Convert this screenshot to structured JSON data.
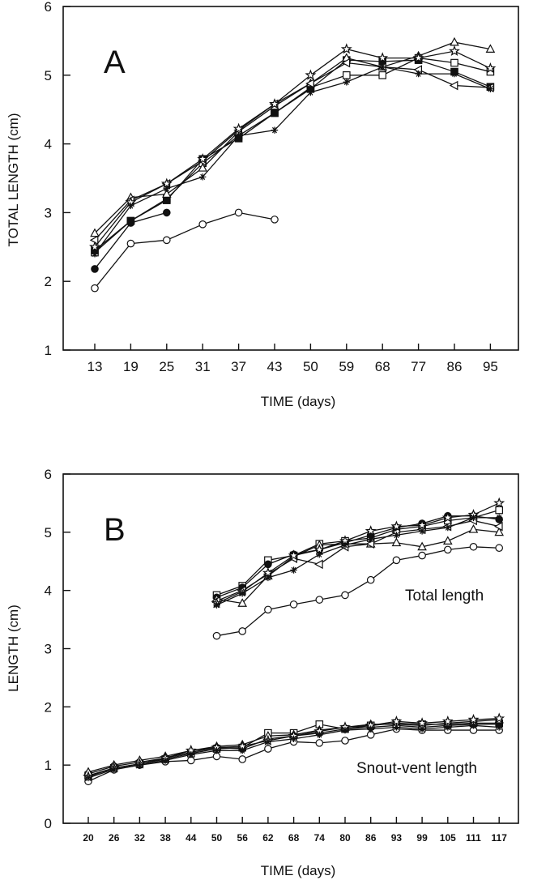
{
  "chart_data": [
    {
      "type": "line",
      "panel_label": "A",
      "xlabel": "TIME (days)",
      "ylabel": "TOTAL LENGTH (cm)",
      "ylim": [
        1,
        6
      ],
      "yticks": [
        "1",
        "2",
        "3",
        "4",
        "5",
        "6"
      ],
      "categories": [
        "13",
        "19",
        "25",
        "31",
        "37",
        "43",
        "50",
        "59",
        "68",
        "77",
        "86",
        "95"
      ],
      "series": [
        {
          "marker": "open-circle",
          "values": [
            1.9,
            2.55,
            2.6,
            2.83,
            3.0,
            2.9,
            null,
            null,
            null,
            null,
            null,
            null
          ]
        },
        {
          "marker": "filled-circle",
          "values": [
            2.18,
            2.85,
            3.0,
            null,
            null,
            null,
            null,
            null,
            null,
            null,
            null,
            null
          ]
        },
        {
          "marker": "open-square",
          "values": [
            2.42,
            2.88,
            3.2,
            3.72,
            4.12,
            4.45,
            4.82,
            5.0,
            5.0,
            5.25,
            5.18,
            5.05
          ]
        },
        {
          "marker": "filled-square",
          "values": [
            2.45,
            2.88,
            3.18,
            3.78,
            4.08,
            4.45,
            4.8,
            5.22,
            5.2,
            5.22,
            5.05,
            4.83
          ]
        },
        {
          "marker": "open-triangle",
          "values": [
            2.7,
            3.22,
            3.27,
            3.65,
            4.18,
            4.55,
            4.88,
            5.25,
            5.12,
            5.28,
            5.48,
            5.38
          ]
        },
        {
          "marker": "left-triangle",
          "values": [
            2.6,
            3.18,
            3.42,
            3.75,
            4.2,
            4.58,
            4.88,
            5.18,
            5.12,
            5.08,
            4.85,
            4.82
          ]
        },
        {
          "marker": "star",
          "values": [
            2.5,
            3.15,
            3.42,
            3.78,
            4.22,
            4.58,
            5.0,
            5.38,
            5.25,
            5.25,
            5.35,
            5.1
          ]
        },
        {
          "marker": "asterisk",
          "values": [
            2.4,
            3.1,
            3.35,
            3.52,
            4.12,
            4.2,
            4.75,
            4.9,
            5.12,
            5.02,
            5.02,
            4.8
          ]
        }
      ]
    },
    {
      "type": "line",
      "panel_label": "B",
      "xlabel": "TIME (days)",
      "ylabel": "LENGTH (cm)",
      "ylim": [
        0,
        6
      ],
      "yticks": [
        "0",
        "1",
        "2",
        "3",
        "4",
        "5",
        "6"
      ],
      "categories": [
        "20",
        "26",
        "32",
        "38",
        "44",
        "50",
        "56",
        "62",
        "68",
        "74",
        "80",
        "86",
        "93",
        "99",
        "105",
        "111",
        "117"
      ],
      "annotations": [
        "Total length",
        "Snout-vent length"
      ],
      "series": [
        {
          "group": "total",
          "marker": "open-circle",
          "values": [
            null,
            null,
            null,
            null,
            null,
            3.22,
            3.3,
            3.67,
            3.76,
            3.84,
            3.92,
            4.18,
            4.52,
            4.6,
            4.7,
            4.75,
            4.73
          ]
        },
        {
          "group": "total",
          "marker": "open-square",
          "values": [
            null,
            null,
            null,
            null,
            null,
            3.92,
            4.08,
            4.52,
            4.6,
            4.8,
            4.85,
            4.9,
            5.05,
            5.1,
            5.2,
            5.25,
            5.38
          ]
        },
        {
          "group": "total",
          "marker": "filled-circle",
          "values": [
            null,
            null,
            null,
            null,
            null,
            3.88,
            4.05,
            4.45,
            4.62,
            4.7,
            4.82,
            4.95,
            5.08,
            5.15,
            5.28,
            5.28,
            5.22
          ]
        },
        {
          "group": "total",
          "marker": "open-triangle",
          "values": [
            null,
            null,
            null,
            null,
            null,
            3.85,
            3.78,
            4.25,
            4.58,
            4.78,
            4.8,
            4.8,
            4.82,
            4.75,
            4.85,
            5.05,
            5.0
          ]
        },
        {
          "group": "total",
          "marker": "left-triangle",
          "values": [
            null,
            null,
            null,
            null,
            null,
            3.82,
            4.0,
            4.28,
            4.55,
            4.45,
            4.75,
            4.8,
            5.0,
            5.05,
            5.1,
            5.2,
            5.1
          ]
        },
        {
          "group": "total",
          "marker": "star",
          "values": [
            null,
            null,
            null,
            null,
            null,
            3.78,
            3.98,
            4.3,
            4.6,
            4.7,
            4.85,
            5.02,
            5.1,
            5.12,
            5.25,
            5.3,
            5.5
          ]
        },
        {
          "group": "total",
          "marker": "asterisk",
          "values": [
            null,
            null,
            null,
            null,
            null,
            3.75,
            3.95,
            4.22,
            4.35,
            4.62,
            4.78,
            4.88,
            4.95,
            5.02,
            5.08,
            5.25,
            5.25
          ]
        },
        {
          "group": "snout-vent",
          "marker": "open-circle",
          "values": [
            0.72,
            0.92,
            1.0,
            1.06,
            1.08,
            1.15,
            1.1,
            1.28,
            1.4,
            1.38,
            1.42,
            1.52,
            1.62,
            1.6,
            1.6,
            1.6,
            1.6
          ]
        },
        {
          "group": "snout-vent",
          "marker": "open-square",
          "values": [
            0.82,
            0.95,
            1.02,
            1.1,
            1.2,
            1.28,
            1.3,
            1.55,
            1.55,
            1.7,
            1.62,
            1.68,
            1.72,
            1.7,
            1.7,
            1.72,
            1.72
          ]
        },
        {
          "group": "snout-vent",
          "marker": "filled-circle",
          "values": [
            0.85,
            0.98,
            1.05,
            1.12,
            1.22,
            1.3,
            1.28,
            1.45,
            1.5,
            1.55,
            1.62,
            1.65,
            1.68,
            1.65,
            1.68,
            1.7,
            1.7
          ]
        },
        {
          "group": "snout-vent",
          "marker": "open-triangle",
          "values": [
            0.88,
            1.0,
            1.08,
            1.15,
            1.25,
            1.32,
            1.35,
            1.5,
            1.52,
            1.6,
            1.65,
            1.7,
            1.7,
            1.68,
            1.72,
            1.75,
            1.78
          ]
        },
        {
          "group": "snout-vent",
          "marker": "star",
          "values": [
            0.8,
            0.95,
            1.02,
            1.12,
            1.25,
            1.3,
            1.32,
            1.42,
            1.5,
            1.58,
            1.65,
            1.68,
            1.75,
            1.72,
            1.75,
            1.78,
            1.8
          ]
        },
        {
          "group": "snout-vent",
          "marker": "asterisk",
          "values": [
            0.78,
            0.93,
            1.0,
            1.08,
            1.18,
            1.25,
            1.25,
            1.4,
            1.45,
            1.52,
            1.6,
            1.62,
            1.65,
            1.62,
            1.65,
            1.68,
            1.65
          ]
        }
      ]
    }
  ]
}
